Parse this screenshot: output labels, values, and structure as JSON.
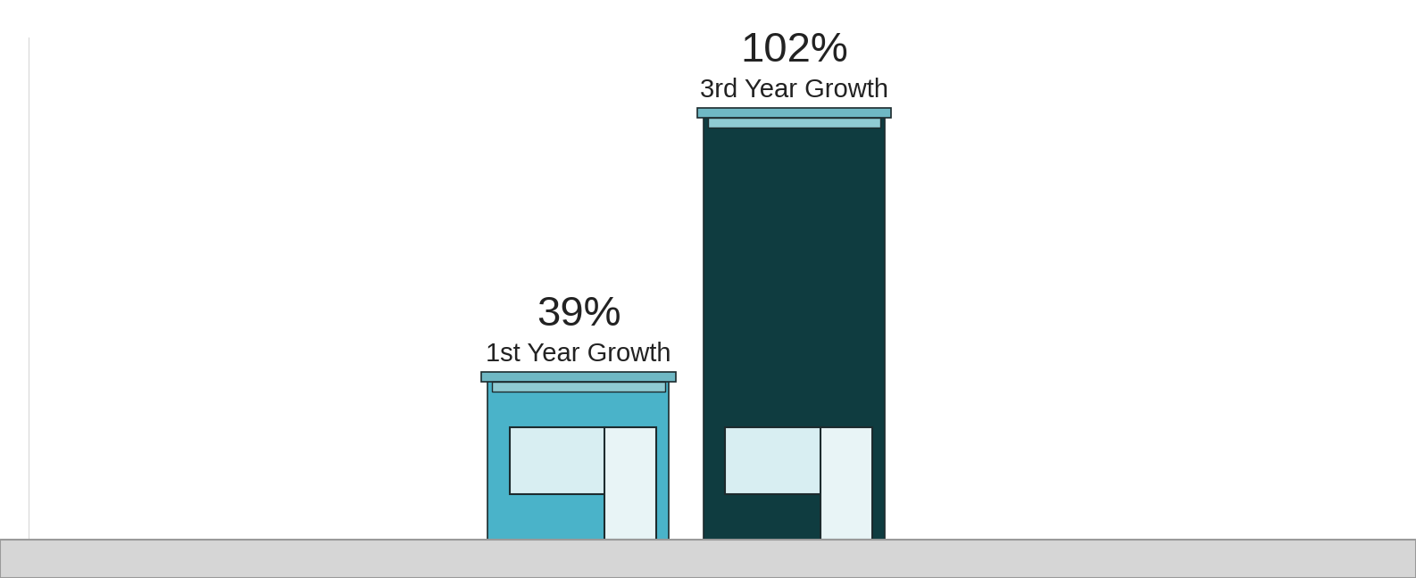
{
  "chart_data": {
    "type": "bar",
    "categories": [
      "1st Year Growth",
      "3rd Year Growth"
    ],
    "values": [
      39,
      102
    ],
    "value_labels": [
      "39%",
      "102%"
    ],
    "colors": [
      "#4ab3c9",
      "#0f3c40"
    ],
    "ylim": [
      0,
      120
    ],
    "tick_labels": false,
    "data_labels": true
  }
}
